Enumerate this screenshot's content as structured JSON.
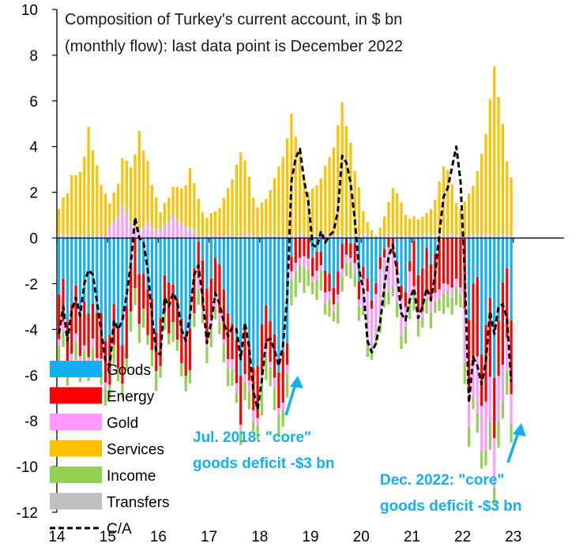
{
  "chart_data": {
    "type": "bar",
    "subtype": "stacked-bar-with-line",
    "title_lines": [
      "Composition of Turkey's current account, in $ bn",
      "(monthly flow): last data point is December 2022"
    ],
    "y_range": [
      -12,
      10
    ],
    "y_ticks": [
      {
        "value": 10,
        "label": "10"
      },
      {
        "value": 8,
        "label": "8"
      },
      {
        "value": 6,
        "label": "6"
      },
      {
        "value": 4,
        "label": "4"
      },
      {
        "value": 2,
        "label": "2"
      },
      {
        "value": 0,
        "label": "0"
      },
      {
        "value": -2,
        "label": "-2"
      },
      {
        "value": -4,
        "label": "-4"
      },
      {
        "value": -6,
        "label": "-6"
      },
      {
        "value": -8,
        "label": "-8"
      },
      {
        "value": -10,
        "label": "-10"
      },
      {
        "value": -12,
        "label": "-12"
      }
    ],
    "x_ticks": [
      {
        "month": 0,
        "label": "14"
      },
      {
        "month": 12,
        "label": "15"
      },
      {
        "month": 24,
        "label": "16"
      },
      {
        "month": 36,
        "label": "17"
      },
      {
        "month": 48,
        "label": "18"
      },
      {
        "month": 60,
        "label": "19"
      },
      {
        "month": 72,
        "label": "20"
      },
      {
        "month": 84,
        "label": "21"
      },
      {
        "month": 96,
        "label": "22"
      },
      {
        "month": 108,
        "label": "23"
      }
    ],
    "x_range_months": [
      0,
      120
    ],
    "period": "Jan 2014 - Dec 2022 (monthly)",
    "series": [
      {
        "name": "Goods",
        "color": "#12b0f0",
        "values": []
      },
      {
        "name": "Energy",
        "color": "#ff0000",
        "values": []
      },
      {
        "name": "Gold",
        "color": "#ff99ff",
        "values": []
      },
      {
        "name": "Services",
        "color": "#ffc000",
        "values": []
      },
      {
        "name": "Income",
        "color": "#92d050",
        "values": []
      },
      {
        "name": "Transfers",
        "color": "#bfbfbf",
        "values": []
      },
      {
        "name": "C/A",
        "color": "#000000",
        "style": "dashed-line",
        "values": []
      }
    ],
    "annotations": [
      {
        "lines": [
          "Jul. 2018: \"core\"",
          "goods deficit -$3 bn"
        ],
        "month": 54
      },
      {
        "lines": [
          "Dec. 2022: \"core\"",
          "goods deficit -$3 bn"
        ],
        "month": 107
      }
    ]
  }
}
